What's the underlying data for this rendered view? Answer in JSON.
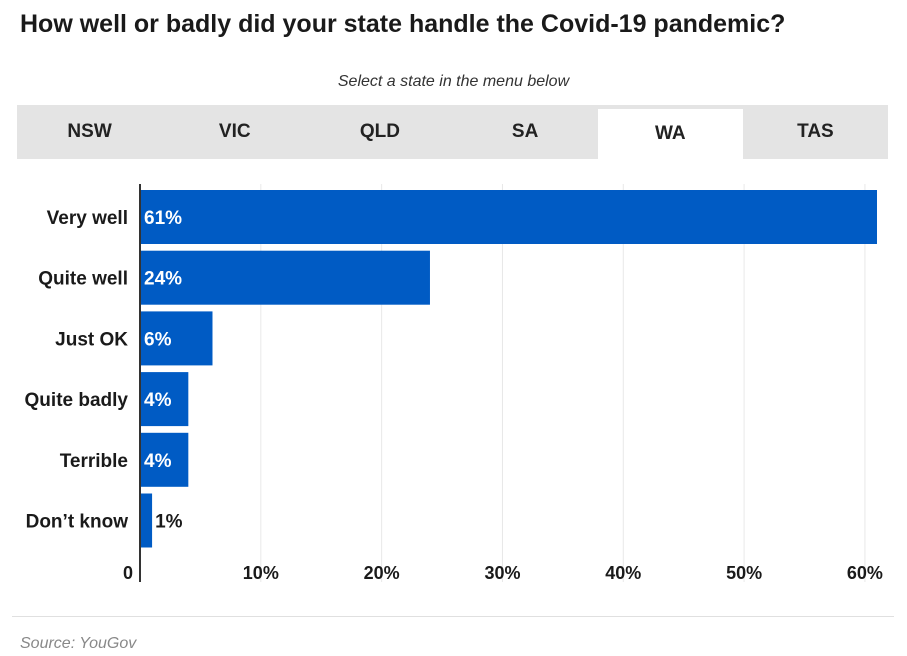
{
  "header": {
    "title": "How well or badly did your state handle the Covid-19 pandemic?",
    "subtitle": "Select a state in the menu below"
  },
  "tabs": [
    {
      "label": "NSW",
      "active": false
    },
    {
      "label": "VIC",
      "active": false
    },
    {
      "label": "QLD",
      "active": false
    },
    {
      "label": "SA",
      "active": false
    },
    {
      "label": "WA",
      "active": true
    },
    {
      "label": "TAS",
      "active": false
    }
  ],
  "footer": {
    "source": "Source: YouGov"
  },
  "colors": {
    "bar": "#005bc4",
    "grid": "#e8e8e8",
    "axis": "#333333"
  },
  "chart_data": {
    "type": "bar",
    "orientation": "horizontal",
    "categories": [
      "Very well",
      "Quite well",
      "Just OK",
      "Quite badly",
      "Terrible",
      "Don’t know"
    ],
    "values": [
      61,
      24,
      6,
      4,
      4,
      1
    ],
    "value_labels": [
      "61%",
      "24%",
      "6%",
      "4%",
      "4%",
      "1%"
    ],
    "xlim": [
      0,
      61
    ],
    "xticks": [
      0,
      10,
      20,
      30,
      40,
      50,
      60
    ],
    "xtick_labels": [
      "0",
      "10%",
      "20%",
      "30%",
      "40%",
      "50%",
      "60%"
    ],
    "grid": true
  }
}
